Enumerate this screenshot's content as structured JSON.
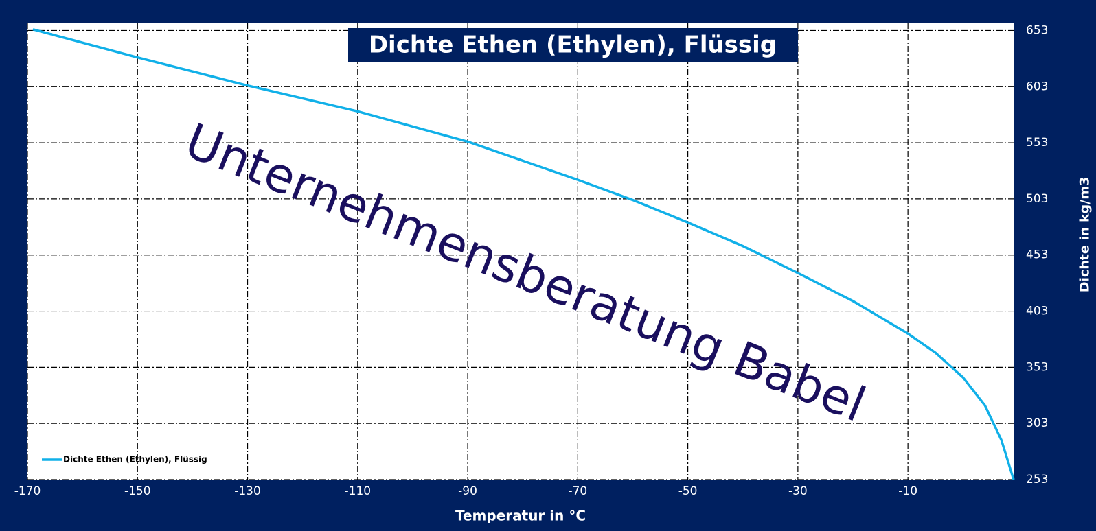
{
  "chart_data": {
    "type": "line",
    "title": "Dichte Ethen (Ethylen), Flüssig",
    "watermark": "Unternehmensberatung Babel",
    "x_label": "Temperatur in °C",
    "y_label": "Dichte in kg/m3",
    "x": [
      -169,
      -150,
      -130,
      -110,
      -90,
      -70,
      -60,
      -50,
      -40,
      -30,
      -20,
      -10,
      -5,
      0,
      4,
      7,
      9.2
    ],
    "series": [
      {
        "name": "Dichte Ethen (Ethylen), Flüssig",
        "color": "#11b0e8",
        "values": [
          654,
          629,
          604,
          581,
          554,
          520,
          502,
          482,
          461,
          437,
          412,
          383,
          366,
          344,
          319,
          288,
          253
        ]
      }
    ],
    "xlim": [
      -170,
      9.2
    ],
    "ylim": [
      253,
      660
    ],
    "xticks": [
      -170,
      -150,
      -130,
      -110,
      -90,
      -70,
      -50,
      -30,
      -10
    ],
    "yticks": [
      253,
      303,
      353,
      403,
      453,
      503,
      553,
      603,
      653
    ],
    "grid": true,
    "legend": "bottom-left"
  }
}
